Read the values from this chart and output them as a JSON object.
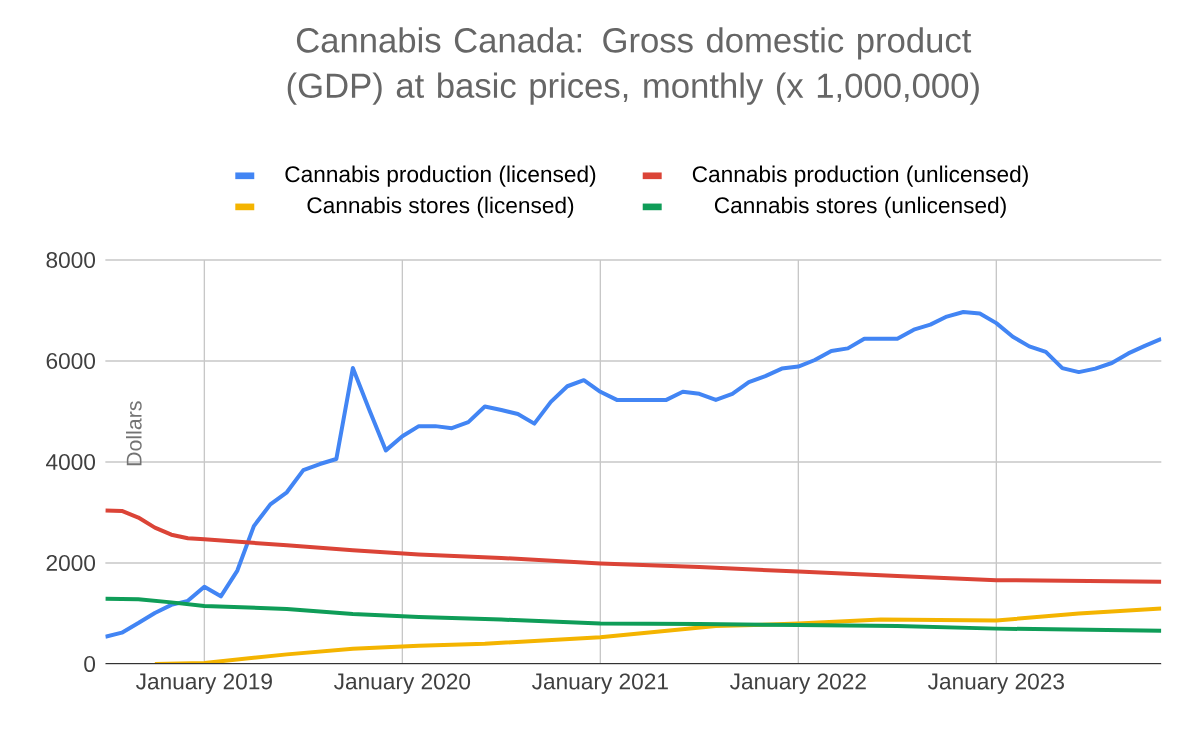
{
  "chart_data": {
    "type": "line",
    "title": "Cannabis Canada: Gross domestic product (GDP) at basic prices, monthly (x 1,000,000)",
    "ylabel": "Dollars",
    "xlim": [
      "2018-07",
      "2023-11"
    ],
    "ylim": [
      0,
      8000
    ],
    "yticks": [
      0,
      2000,
      4000,
      6000,
      8000
    ],
    "xticks": [
      {
        "value": "2019-01",
        "label": "January 2019"
      },
      {
        "value": "2020-01",
        "label": "January 2020"
      },
      {
        "value": "2021-01",
        "label": "January 2021"
      },
      {
        "value": "2022-01",
        "label": "January 2022"
      },
      {
        "value": "2023-01",
        "label": "January 2023"
      }
    ],
    "grid": true,
    "legend": "top",
    "marker": "none",
    "line_style": "solid",
    "series": [
      {
        "name": "Cannabis production (licensed)",
        "color": "#4285f4",
        "x": [
          "2018-07",
          "2018-08",
          "2018-09",
          "2018-10",
          "2018-11",
          "2018-12",
          "2019-01",
          "2019-02",
          "2019-03",
          "2019-04",
          "2019-05",
          "2019-06",
          "2019-07",
          "2019-08",
          "2019-09",
          "2019-10",
          "2019-11",
          "2019-12",
          "2020-01",
          "2020-02",
          "2020-03",
          "2020-04",
          "2020-05",
          "2020-06",
          "2020-07",
          "2020-08",
          "2020-09",
          "2020-10",
          "2020-11",
          "2020-12",
          "2021-01",
          "2021-02",
          "2021-03",
          "2021-04",
          "2021-05",
          "2021-06",
          "2021-07",
          "2021-08",
          "2021-09",
          "2021-10",
          "2021-11",
          "2021-12",
          "2022-01",
          "2022-02",
          "2022-03",
          "2022-04",
          "2022-05",
          "2022-06",
          "2022-07",
          "2022-08",
          "2022-09",
          "2022-10",
          "2022-11",
          "2022-12",
          "2023-01",
          "2023-02",
          "2023-03",
          "2023-04",
          "2023-05",
          "2023-06",
          "2023-07",
          "2023-08",
          "2023-09",
          "2023-10",
          "2023-11"
        ],
        "values": [
          540,
          620,
          810,
          1010,
          1170,
          1250,
          1530,
          1340,
          1850,
          2730,
          3160,
          3400,
          3840,
          3960,
          4060,
          5860,
          5030,
          4230,
          4510,
          4710,
          4710,
          4670,
          4790,
          5100,
          5030,
          4950,
          4760,
          5190,
          5500,
          5620,
          5390,
          5230,
          5230,
          5230,
          5230,
          5390,
          5350,
          5230,
          5350,
          5580,
          5700,
          5850,
          5890,
          6020,
          6200,
          6250,
          6440,
          6440,
          6440,
          6620,
          6720,
          6880,
          6970,
          6940,
          6750,
          6480,
          6290,
          6180,
          5860,
          5780,
          5850,
          5960,
          6150,
          6300,
          6440
        ]
      },
      {
        "name": "Cannabis production (unlicensed)",
        "color": "#db4437",
        "x": [
          "2018-07",
          "2018-08",
          "2018-09",
          "2018-10",
          "2018-11",
          "2018-12",
          "2019-01",
          "2019-06",
          "2019-10",
          "2020-02",
          "2020-07",
          "2021-01",
          "2021-07",
          "2022-01",
          "2022-07",
          "2023-01",
          "2023-11"
        ],
        "values": [
          3040,
          3030,
          2900,
          2700,
          2560,
          2490,
          2470,
          2350,
          2250,
          2170,
          2100,
          1990,
          1920,
          1830,
          1740,
          1660,
          1630
        ]
      },
      {
        "name": "Cannabis stores (licensed)",
        "color": "#f4b400",
        "x": [
          "2018-10",
          "2019-01",
          "2019-06",
          "2019-10",
          "2020-02",
          "2020-06",
          "2021-01",
          "2021-08",
          "2022-01",
          "2022-06",
          "2023-01",
          "2023-06",
          "2023-11"
        ],
        "values": [
          0,
          20,
          190,
          300,
          360,
          400,
          530,
          750,
          800,
          880,
          860,
          1000,
          1100
        ]
      },
      {
        "name": "Cannabis stores (unlicensed)",
        "color": "#0f9d58",
        "x": [
          "2018-07",
          "2018-09",
          "2018-11",
          "2019-01",
          "2019-06",
          "2019-10",
          "2020-02",
          "2020-07",
          "2021-01",
          "2021-07",
          "2022-01",
          "2022-07",
          "2023-01",
          "2023-11"
        ],
        "values": [
          1290,
          1280,
          1220,
          1150,
          1090,
          990,
          930,
          880,
          800,
          790,
          770,
          750,
          700,
          660
        ]
      }
    ]
  }
}
